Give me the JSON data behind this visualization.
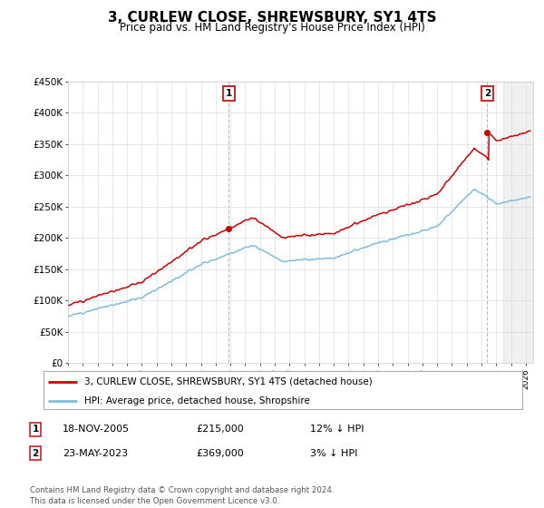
{
  "title": "3, CURLEW CLOSE, SHREWSBURY, SY1 4TS",
  "subtitle": "Price paid vs. HM Land Registry's House Price Index (HPI)",
  "ylabel_ticks": [
    "£0",
    "£50K",
    "£100K",
    "£150K",
    "£200K",
    "£250K",
    "£300K",
    "£350K",
    "£400K",
    "£450K"
  ],
  "ytick_values": [
    0,
    50000,
    100000,
    150000,
    200000,
    250000,
    300000,
    350000,
    400000,
    450000
  ],
  "ylim": [
    0,
    450000
  ],
  "xlim_start": 1995.0,
  "xlim_end": 2026.5,
  "xtick_years": [
    1995,
    1996,
    1997,
    1998,
    1999,
    2000,
    2001,
    2002,
    2003,
    2004,
    2005,
    2006,
    2007,
    2008,
    2009,
    2010,
    2011,
    2012,
    2013,
    2014,
    2015,
    2016,
    2017,
    2018,
    2019,
    2020,
    2021,
    2022,
    2023,
    2024,
    2025,
    2026
  ],
  "sale1_x": 2005.88,
  "sale1_y": 215000,
  "sale2_x": 2023.39,
  "sale2_y": 369000,
  "hpi_color": "#7bbedd",
  "price_color": "#cc0000",
  "legend_label1": "3, CURLEW CLOSE, SHREWSBURY, SY1 4TS (detached house)",
  "legend_label2": "HPI: Average price, detached house, Shropshire",
  "annotation1_date": "18-NOV-2005",
  "annotation1_price": "£215,000",
  "annotation1_hpi": "12% ↓ HPI",
  "annotation2_date": "23-MAY-2023",
  "annotation2_price": "£369,000",
  "annotation2_hpi": "3% ↓ HPI",
  "footer": "Contains HM Land Registry data © Crown copyright and database right 2024.\nThis data is licensed under the Open Government Licence v3.0.",
  "background_color": "#ffffff",
  "grid_color": "#dddddd",
  "shade_start": 2024.5
}
